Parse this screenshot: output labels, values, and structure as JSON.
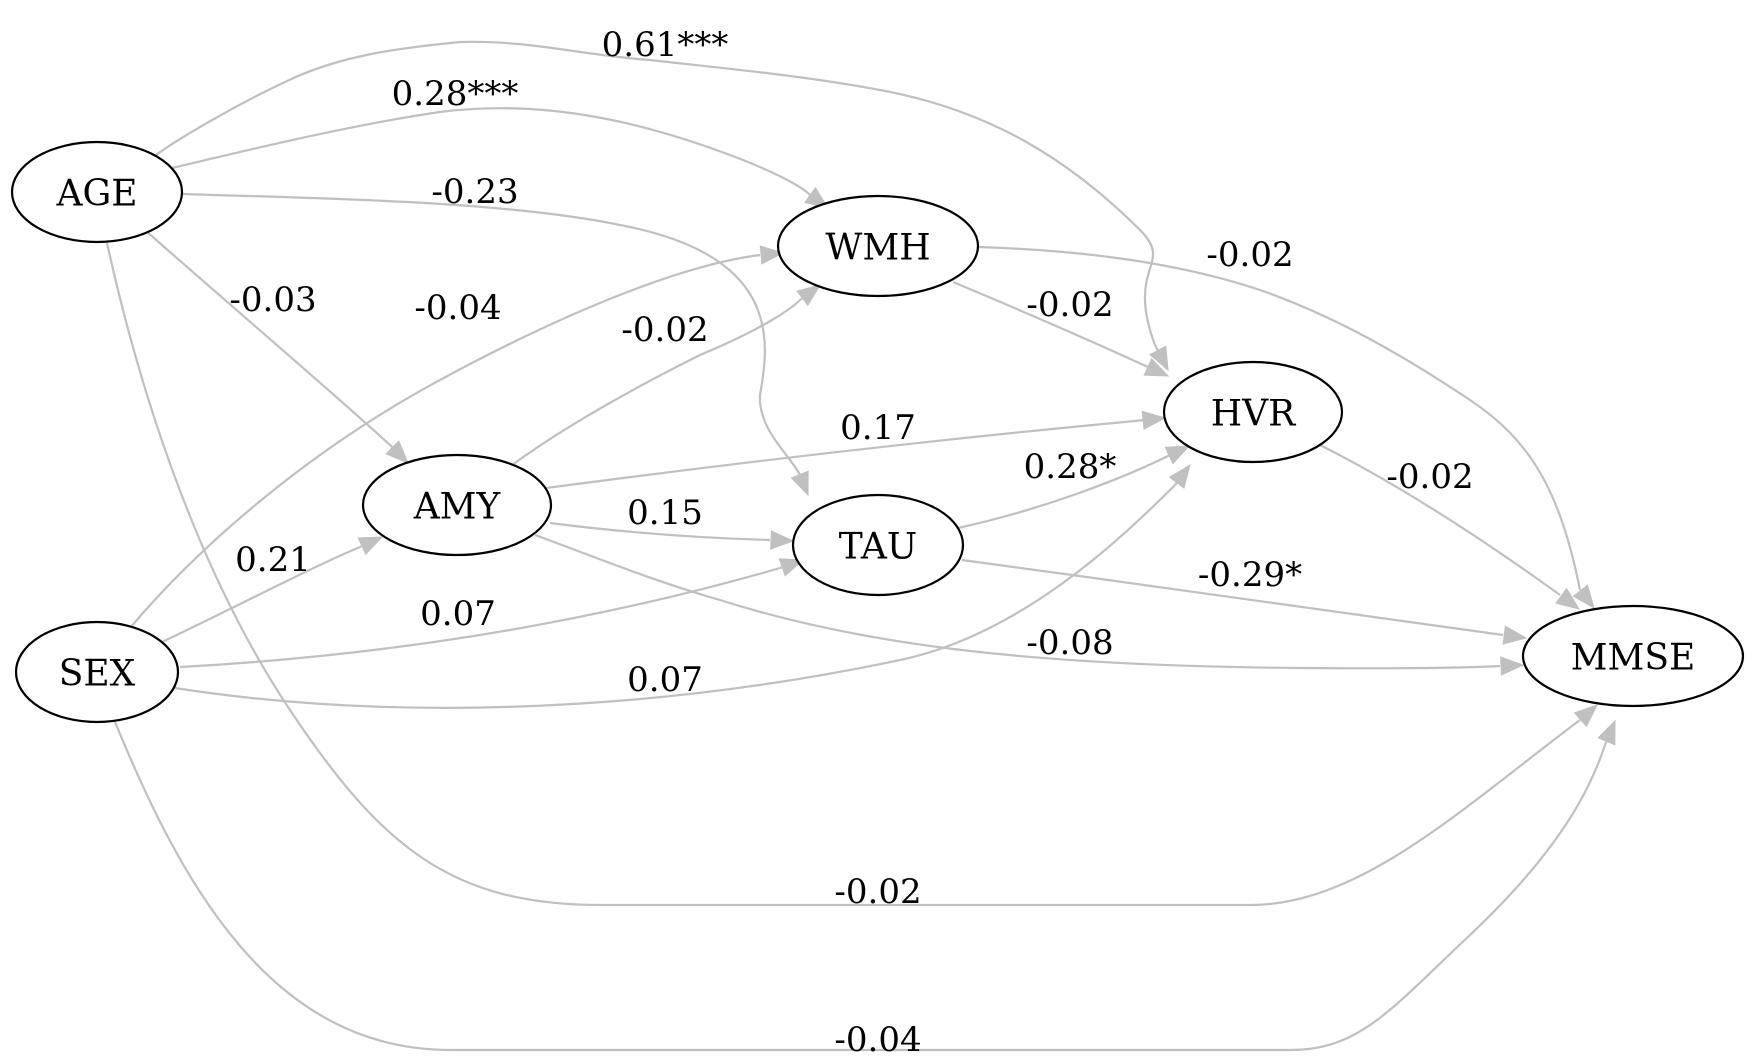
{
  "nodes": [
    {
      "id": "AGE",
      "label": "AGE"
    },
    {
      "id": "SEX",
      "label": "SEX"
    },
    {
      "id": "AMY",
      "label": "AMY"
    },
    {
      "id": "WMH",
      "label": "WMH"
    },
    {
      "id": "TAU",
      "label": "TAU"
    },
    {
      "id": "HVR",
      "label": "HVR"
    },
    {
      "id": "MMSE",
      "label": "MMSE"
    }
  ],
  "edges": [
    {
      "from": "AGE",
      "to": "HVR",
      "label": "0.61***"
    },
    {
      "from": "AGE",
      "to": "WMH",
      "label": "0.28***"
    },
    {
      "from": "AGE",
      "to": "TAU",
      "label": "-0.23"
    },
    {
      "from": "AGE",
      "to": "AMY",
      "label": "-0.03"
    },
    {
      "from": "AGE",
      "to": "MMSE",
      "label": "-0.02"
    },
    {
      "from": "SEX",
      "to": "WMH",
      "label": "-0.04"
    },
    {
      "from": "SEX",
      "to": "AMY",
      "label": "0.21"
    },
    {
      "from": "SEX",
      "to": "TAU",
      "label": "0.07"
    },
    {
      "from": "SEX",
      "to": "HVR",
      "label": "0.07"
    },
    {
      "from": "SEX",
      "to": "MMSE",
      "label": "-0.04"
    },
    {
      "from": "AMY",
      "to": "WMH",
      "label": "-0.02"
    },
    {
      "from": "AMY",
      "to": "HVR",
      "label": "0.17"
    },
    {
      "from": "AMY",
      "to": "TAU",
      "label": "0.15"
    },
    {
      "from": "AMY",
      "to": "MMSE",
      "label": "-0.08"
    },
    {
      "from": "WMH",
      "to": "MMSE",
      "label": "-0.02"
    },
    {
      "from": "WMH",
      "to": "HVR",
      "label": "-0.02"
    },
    {
      "from": "TAU",
      "to": "HVR",
      "label": "0.28*"
    },
    {
      "from": "TAU",
      "to": "MMSE",
      "label": "-0.29*"
    },
    {
      "from": "HVR",
      "to": "MMSE",
      "label": "-0.02"
    }
  ]
}
